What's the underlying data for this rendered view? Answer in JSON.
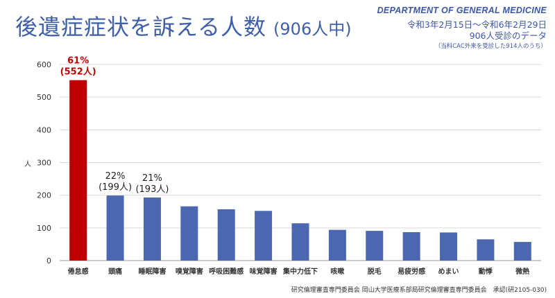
{
  "header": {
    "title": "後遺症症状を訴える人数",
    "subtitle": "(906人中)",
    "department": "DEPARTMENT OF GENERAL MEDICINE",
    "period_line1": "令和3年2月15日～令和6年2月29日",
    "period_line2": "906人受診のデータ",
    "period_note": "（当科CAC外来を受診した914人のうち）"
  },
  "footer": {
    "text": "研究倫理審査専門委員会 岡山大学医療系部局研究倫理審査専門委員会　承認(研2105-030)"
  },
  "chart_data": {
    "type": "bar",
    "ylabel": "人",
    "ylim": [
      0,
      600
    ],
    "yticks": [
      0,
      100,
      200,
      300,
      400,
      500,
      600
    ],
    "grid": true,
    "categories": [
      "倦怠感",
      "頭痛",
      "睡眠障害",
      "嗅覚障害",
      "呼吸困難感",
      "味覚障害",
      "集中力低下",
      "咳嗽",
      "脱毛",
      "易疲労感",
      "めまい",
      "動悸",
      "微熱"
    ],
    "values": [
      552,
      199,
      193,
      166,
      157,
      152,
      114,
      94,
      91,
      87,
      86,
      65,
      57
    ],
    "colors": {
      "highlight": "#c00000",
      "bar": "#4a67b0",
      "grid": "#d9d9d9",
      "axis": "#999999"
    },
    "annotations": [
      {
        "index": 0,
        "line1": "61%",
        "line2": "(552人)",
        "highlight": true
      },
      {
        "index": 1,
        "line1": "22%",
        "line2": "(199人)",
        "highlight": false
      },
      {
        "index": 2,
        "line1": "21%",
        "line2": "(193人)",
        "highlight": false
      }
    ]
  }
}
